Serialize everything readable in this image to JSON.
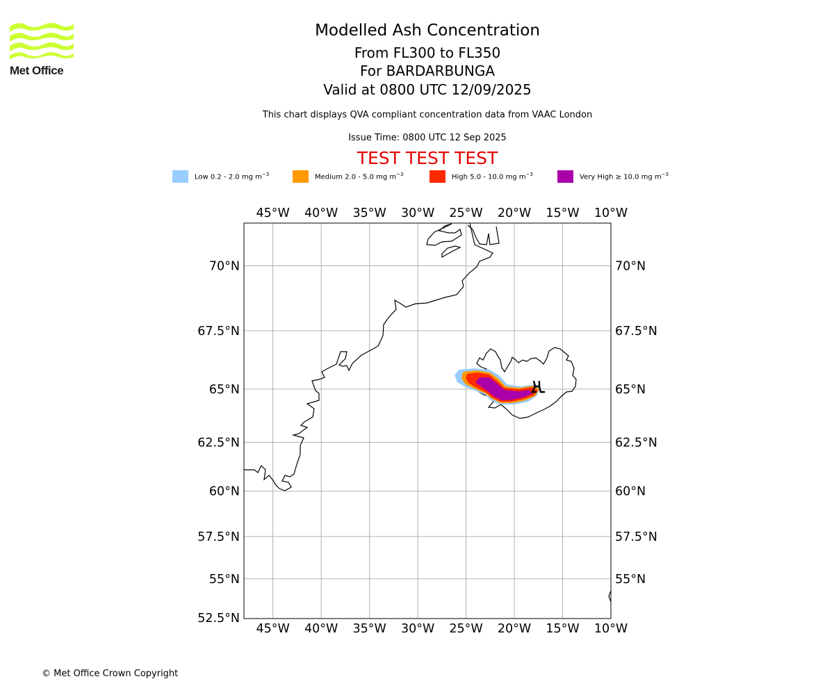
{
  "header": {
    "title": "Modelled Ash Concentration",
    "level_range": "From FL300 to FL350",
    "volcano": "For BARDARBUNGA",
    "valid_time": "Valid at 0800 UTC 12/09/2025",
    "description": "This chart displays QVA compliant concentration data from VAAC London",
    "issue_time": "Issue Time: 0800 UTC 12 Sep 2025",
    "test_banner": "TEST TEST TEST"
  },
  "logo": {
    "wordmark": "Met Office",
    "color": "#ccff33"
  },
  "legend": [
    {
      "level": "Low",
      "range": "0.2 - 2.0 mg m",
      "color": "#99ccff",
      "exponent": "−3"
    },
    {
      "level": "Medium",
      "range": "2.0 - 5.0 mg m",
      "color": "#ff9900",
      "exponent": "−3"
    },
    {
      "level": "High",
      "range": "5.0 - 10.0 mg m",
      "color": "#ff2a00",
      "exponent": "−3"
    },
    {
      "level": "Very High",
      "range": "≥  10.0 mg m",
      "color": "#aa00aa",
      "exponent": "−3"
    }
  ],
  "map": {
    "lon_labels": [
      "45°W",
      "40°W",
      "35°W",
      "30°W",
      "25°W",
      "20°W",
      "15°W",
      "10°W"
    ],
    "lon_values": [
      -45,
      -40,
      -35,
      -30,
      -25,
      -20,
      -15,
      -10
    ],
    "lat_labels": [
      "70°N",
      "67.5°N",
      "65°N",
      "62.5°N",
      "60°N",
      "57.5°N",
      "55°N"
    ],
    "lat_values": [
      70,
      67.5,
      65,
      62.5,
      60,
      57.5,
      55
    ],
    "left_bottom_label": "52.5°N",
    "lon_range": [
      -48,
      -10
    ],
    "lat_range": [
      52.5,
      71.5
    ],
    "grid": true,
    "gridline_color": "#b0b0b0"
  },
  "footer": {
    "copyright": "© Met Office Crown Copyright"
  }
}
